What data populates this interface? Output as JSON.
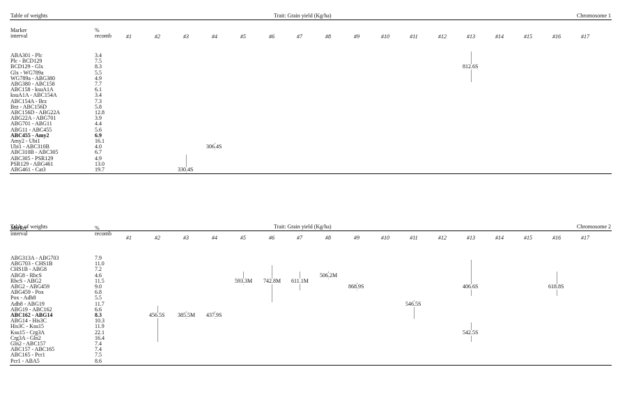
{
  "tables": [
    {
      "label": "Table of weights",
      "trait": "Trait: Grain yield (Kg/ha)",
      "chromosome": "Chromosome 1",
      "col_marker": [
        "Marker",
        "interval"
      ],
      "col_recomb": [
        "%",
        "recomb"
      ],
      "env_columns": [
        "#1",
        "#2",
        "#3",
        "#4",
        "#5",
        "#6",
        "#7",
        "#8",
        "#9",
        "#10",
        "#11",
        "#12",
        "#13",
        "#14",
        "#15",
        "#16",
        "#17"
      ],
      "rows": [
        {
          "marker": "ABA301 - Plc",
          "recomb": "3.4",
          "bold": false
        },
        {
          "marker": "Plc - BCD129",
          "recomb": "7.5",
          "bold": false
        },
        {
          "marker": "BCD129 - Glx",
          "recomb": "8.3",
          "bold": false
        },
        {
          "marker": "Glx - WG789a",
          "recomb": "5.5",
          "bold": false
        },
        {
          "marker": "WG789a - ABG380",
          "recomb": "4.9",
          "bold": false
        },
        {
          "marker": "ABG380 - ABC158",
          "recomb": "7.7",
          "bold": false
        },
        {
          "marker": "ABC158 - ksuA1A",
          "recomb": "6.1",
          "bold": false
        },
        {
          "marker": "ksuA1A - ABC154A",
          "recomb": "3.4",
          "bold": false
        },
        {
          "marker": "ABC154A - Brz",
          "recomb": "7.3",
          "bold": false
        },
        {
          "marker": "Brz - ABC156D",
          "recomb": "5.8",
          "bold": false
        },
        {
          "marker": "ABC156D - ABG22A",
          "recomb": "12.8",
          "bold": false
        },
        {
          "marker": "ABG22A - ABG701",
          "recomb": "3.9",
          "bold": false
        },
        {
          "marker": "ABG701 - ABG11",
          "recomb": "4.4",
          "bold": false
        },
        {
          "marker": "ABG11 - ABC455",
          "recomb": "5.6",
          "bold": false
        },
        {
          "marker": "ABC455 - Amy2",
          "recomb": "6.9",
          "bold": true
        },
        {
          "marker": "Amy2 - Ubi1",
          "recomb": "16.1",
          "bold": false
        },
        {
          "marker": "Ubi1 - ABC310B",
          "recomb": "4.0",
          "bold": false
        },
        {
          "marker": "ABC310B - ABC305",
          "recomb": "6.7",
          "bold": false
        },
        {
          "marker": "ABC305 - PSR129",
          "recomb": "4.9",
          "bold": false
        },
        {
          "marker": "PSR129 - ABG461",
          "recomb": "13.0",
          "bold": false
        },
        {
          "marker": "ABG461 - Cat3",
          "recomb": "19.7",
          "bold": false
        }
      ],
      "weights": [
        {
          "env": 13,
          "row": 2,
          "value": "812.6S",
          "bar_from": 0,
          "bar_to": 4
        },
        {
          "env": 4,
          "row": 16,
          "value": "306.4S",
          "bar_from": 16,
          "bar_to": 16
        },
        {
          "env": 3,
          "row": 20,
          "value": "330.4S",
          "bar_from": 18,
          "bar_to": 20
        }
      ]
    },
    {
      "label": "Table of weights",
      "trait": "Trait: Grain yield (Kg/ha)",
      "chromosome": "Chromosome 2",
      "col_marker": [
        "Marker",
        "interval"
      ],
      "col_recomb": [
        "%",
        "recomb"
      ],
      "env_columns": [
        "#1",
        "#2",
        "#3",
        "#4",
        "#5",
        "#6",
        "#7",
        "#8",
        "#9",
        "#10",
        "#11",
        "#12",
        "#13",
        "#14",
        "#15",
        "#16",
        "#17"
      ],
      "rows": [
        {
          "marker": "ABG313A - ABG703",
          "recomb": "7.9",
          "bold": false
        },
        {
          "marker": "ABG703 - CHS1B",
          "recomb": "11.0",
          "bold": false
        },
        {
          "marker": "CHS1B - ABG8",
          "recomb": "7.2",
          "bold": false
        },
        {
          "marker": "ABG8 - RbcS",
          "recomb": "4.6",
          "bold": false
        },
        {
          "marker": "RbcS - ABG2",
          "recomb": "11.5",
          "bold": false
        },
        {
          "marker": "ABG2 - ABG459",
          "recomb": "9.0",
          "bold": false
        },
        {
          "marker": "ABG459 - Pox",
          "recomb": "6.8",
          "bold": false
        },
        {
          "marker": "Pox - Adh8",
          "recomb": "5.5",
          "bold": false
        },
        {
          "marker": "Adh8 - ABG19",
          "recomb": "11.7",
          "bold": false
        },
        {
          "marker": "ABG19 - ABC162",
          "recomb": "6.6",
          "bold": false
        },
        {
          "marker": "ABC162 - ABG14",
          "recomb": "8.3",
          "bold": true
        },
        {
          "marker": "ABG14 - His3C",
          "recomb": "10.3",
          "bold": false
        },
        {
          "marker": "His3C - Ksu15",
          "recomb": "11.9",
          "bold": false
        },
        {
          "marker": "Ksu15 - Crg3A",
          "recomb": "22.1",
          "bold": false
        },
        {
          "marker": "Crg3A - Gln2",
          "recomb": "16.4",
          "bold": false
        },
        {
          "marker": "Gln2 - ABC157",
          "recomb": "7.4",
          "bold": false
        },
        {
          "marker": "ABC157 - ABC165",
          "recomb": "7.4",
          "bold": false
        },
        {
          "marker": "ABC165 - Pcr1",
          "recomb": "7.5",
          "bold": false
        },
        {
          "marker": "Pcr1 - ABA5",
          "recomb": "8.6",
          "bold": false
        }
      ],
      "weights": [
        {
          "env": 5,
          "row": 4,
          "value": "593.3M",
          "bar_from": 3,
          "bar_to": 4
        },
        {
          "env": 6,
          "row": 4,
          "value": "742.8M",
          "bar_from": 2,
          "bar_to": 7
        },
        {
          "env": 7,
          "row": 4,
          "value": "611.1M",
          "bar_from": 3,
          "bar_to": 5
        },
        {
          "env": 8,
          "row": 3,
          "value": "506.2M",
          "bar_from": 3,
          "bar_to": 3
        },
        {
          "env": 9,
          "row": 5,
          "value": "868.9S",
          "bar_from": 5,
          "bar_to": 5
        },
        {
          "env": 13,
          "row": 5,
          "value": "406.6S",
          "bar_from": 1,
          "bar_to": 6
        },
        {
          "env": 16,
          "row": 5,
          "value": "618.8S",
          "bar_from": 3,
          "bar_to": 6
        },
        {
          "env": 11,
          "row": 8,
          "value": "546.5S",
          "bar_from": 8,
          "bar_to": 10
        },
        {
          "env": 2,
          "row": 10,
          "value": "456.5S",
          "bar_from": 9,
          "bar_to": 14
        },
        {
          "env": 3,
          "row": 10,
          "value": "385.5M",
          "bar_from": 10,
          "bar_to": 10
        },
        {
          "env": 4,
          "row": 10,
          "value": "437.9S",
          "bar_from": 10,
          "bar_to": 10
        },
        {
          "env": 13,
          "row": 13,
          "value": "542.5S",
          "bar_from": 12,
          "bar_to": 14
        }
      ]
    }
  ]
}
